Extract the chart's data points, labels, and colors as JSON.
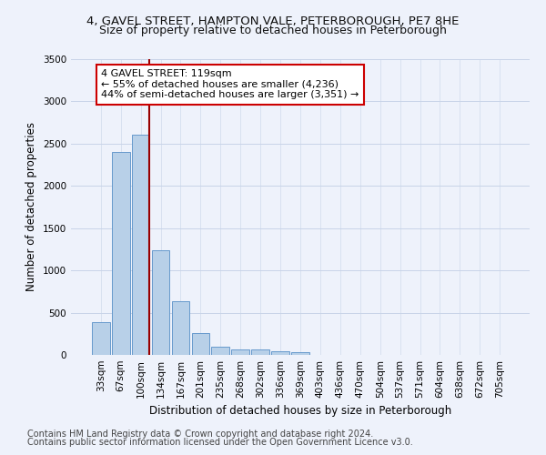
{
  "title_line1": "4, GAVEL STREET, HAMPTON VALE, PETERBOROUGH, PE7 8HE",
  "title_line2": "Size of property relative to detached houses in Peterborough",
  "xlabel": "Distribution of detached houses by size in Peterborough",
  "ylabel": "Number of detached properties",
  "categories": [
    "33sqm",
    "67sqm",
    "100sqm",
    "134sqm",
    "167sqm",
    "201sqm",
    "235sqm",
    "268sqm",
    "302sqm",
    "336sqm",
    "369sqm",
    "403sqm",
    "436sqm",
    "470sqm",
    "504sqm",
    "537sqm",
    "571sqm",
    "604sqm",
    "638sqm",
    "672sqm",
    "705sqm"
  ],
  "values": [
    390,
    2400,
    2610,
    1240,
    640,
    260,
    100,
    65,
    60,
    45,
    30,
    0,
    0,
    0,
    0,
    0,
    0,
    0,
    0,
    0,
    0
  ],
  "bar_color": "#b8d0e8",
  "bar_edge_color": "#6699cc",
  "vline_color": "#990000",
  "annotation_text": "4 GAVEL STREET: 119sqm\n← 55% of detached houses are smaller (4,236)\n44% of semi-detached houses are larger (3,351) →",
  "annotation_box_color": "#ffffff",
  "annotation_box_edge": "#cc0000",
  "ylim": [
    0,
    3500
  ],
  "yticks": [
    0,
    500,
    1000,
    1500,
    2000,
    2500,
    3000,
    3500
  ],
  "footer_line1": "Contains HM Land Registry data © Crown copyright and database right 2024.",
  "footer_line2": "Contains public sector information licensed under the Open Government Licence v3.0.",
  "bg_color": "#eef2fb",
  "grid_color": "#c8d4e8",
  "title_fontsize": 9.5,
  "subtitle_fontsize": 9,
  "axis_label_fontsize": 8.5,
  "tick_fontsize": 7.5,
  "footer_fontsize": 7,
  "annotation_fontsize": 8
}
